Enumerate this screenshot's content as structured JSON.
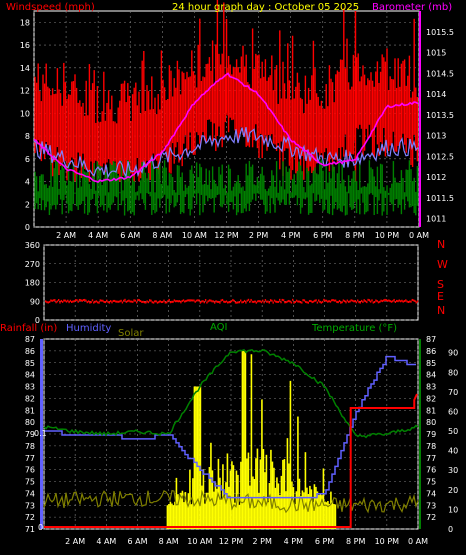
{
  "top": {
    "title": "24 hour graph day : October 05 2025",
    "left_title": "Windspeed (mph)",
    "right_title": "Barometer (mb)",
    "wind_ticks": [
      "0",
      "2",
      "4",
      "6",
      "8",
      "10",
      "12",
      "14",
      "16",
      "18"
    ],
    "baro_ticks": [
      "1011",
      "1011.5",
      "1012",
      "1012.5",
      "1013",
      "1013.5",
      "1014",
      "1014.5",
      "1015",
      "1015.5"
    ],
    "time_ticks": [
      "2 AM",
      "4 AM",
      "6 AM",
      "8 AM",
      "10 AM",
      "12 PM",
      "2 PM",
      "4 PM",
      "6 PM",
      "8 PM",
      "10 PM",
      "0 AM"
    ],
    "colors": {
      "gust": "#ff0000",
      "wind_avg": "#8080ff",
      "baro": "#ff00ff",
      "calm": "#008000",
      "grid": "#808080"
    }
  },
  "direction": {
    "deg_ticks": [
      "0",
      "90",
      "180",
      "270",
      "360"
    ],
    "compass": [
      "N",
      "W",
      "S",
      "E",
      "N"
    ],
    "approx_direction_deg": 90
  },
  "bottom": {
    "labels": {
      "rain": "Rainfall (in)",
      "humidity": "Humidity",
      "solar": "Solar",
      "aqi": "AQI",
      "temp": "Temperature (°F)"
    },
    "rain_tick": "0.1",
    "rain_zero": "0",
    "left_ticks": [
      "71",
      "72",
      "73",
      "74",
      "75",
      "76",
      "77",
      "78",
      "79",
      "80",
      "81",
      "82",
      "83",
      "84",
      "85",
      "86",
      "87"
    ],
    "right_a_ticks": [
      "72",
      "73",
      "74",
      "75",
      "76",
      "77",
      "78",
      "79",
      "80",
      "81",
      "82",
      "83",
      "84",
      "85",
      "86",
      "87"
    ],
    "right_b_ticks": [
      "0",
      "10",
      "20",
      "30",
      "40",
      "50",
      "60",
      "70",
      "80",
      "90"
    ],
    "time_ticks": [
      "2 AM",
      "4 AM",
      "6 AM",
      "8 AM",
      "10 AM",
      "12 PM",
      "2 PM",
      "4 PM",
      "6 PM",
      "8 PM",
      "10 PM",
      "0 AM"
    ],
    "colors": {
      "temp": "#008000",
      "humidity": "#6060ff",
      "solar": "#ffff00",
      "aqi": "#808000",
      "rain": "#ff0000"
    }
  },
  "chart_data": [
    {
      "type": "line",
      "title": "24 hour graph day : October 05 2025",
      "ylabel": "Windspeed (mph)",
      "y2label": "Barometer (mb)",
      "x": [
        "0 AM",
        "2 AM",
        "4 AM",
        "6 AM",
        "8 AM",
        "10 AM",
        "12 PM",
        "2 PM",
        "4 PM",
        "6 PM",
        "8 PM",
        "10 PM",
        "0 AM"
      ],
      "ylim": [
        0,
        19
      ],
      "y2lim": [
        1010.8,
        1016
      ],
      "series": [
        {
          "name": "Windspeed (mph)",
          "values": [
            11,
            10,
            9,
            9,
            10,
            12,
            13,
            12,
            10,
            10,
            12,
            12,
            11
          ]
        },
        {
          "name": "Barometer (mb)",
          "values": [
            1012.9,
            1012.2,
            1011.9,
            1012.0,
            1012.6,
            1013.8,
            1014.5,
            1014.0,
            1012.9,
            1012.3,
            1012.4,
            1013.7,
            1013.8
          ]
        }
      ]
    },
    {
      "type": "scatter",
      "ylim": [
        0,
        360
      ],
      "series": [
        {
          "name": "N W S E N",
          "values": [
            90,
            90,
            90,
            90,
            90,
            90,
            90,
            90,
            90,
            90,
            90,
            90,
            90
          ]
        }
      ]
    },
    {
      "type": "line",
      "ylim": [
        71,
        87
      ],
      "x": [
        "0 AM",
        "2 AM",
        "4 AM",
        "6 AM",
        "8 AM",
        "10 AM",
        "12 PM",
        "2 PM",
        "4 PM",
        "6 PM",
        "8 PM",
        "10 PM",
        "0 AM"
      ],
      "series": [
        {
          "name": "Temperature (°F)",
          "values": [
            79.6,
            79.2,
            79.0,
            79.2,
            79.0,
            83.0,
            86.0,
            86.0,
            85.0,
            83.0,
            78.8,
            79.0,
            79.6
          ]
        },
        {
          "name": "Humidity",
          "values": [
            50,
            48,
            48,
            46,
            48,
            30,
            15,
            15,
            15,
            18,
            60,
            88,
            83
          ]
        },
        {
          "name": "Rainfall (in)",
          "values": [
            0,
            0,
            0,
            0,
            0,
            0,
            0,
            0,
            0,
            0,
            0.08,
            0.08,
            0.1
          ]
        }
      ]
    }
  ]
}
